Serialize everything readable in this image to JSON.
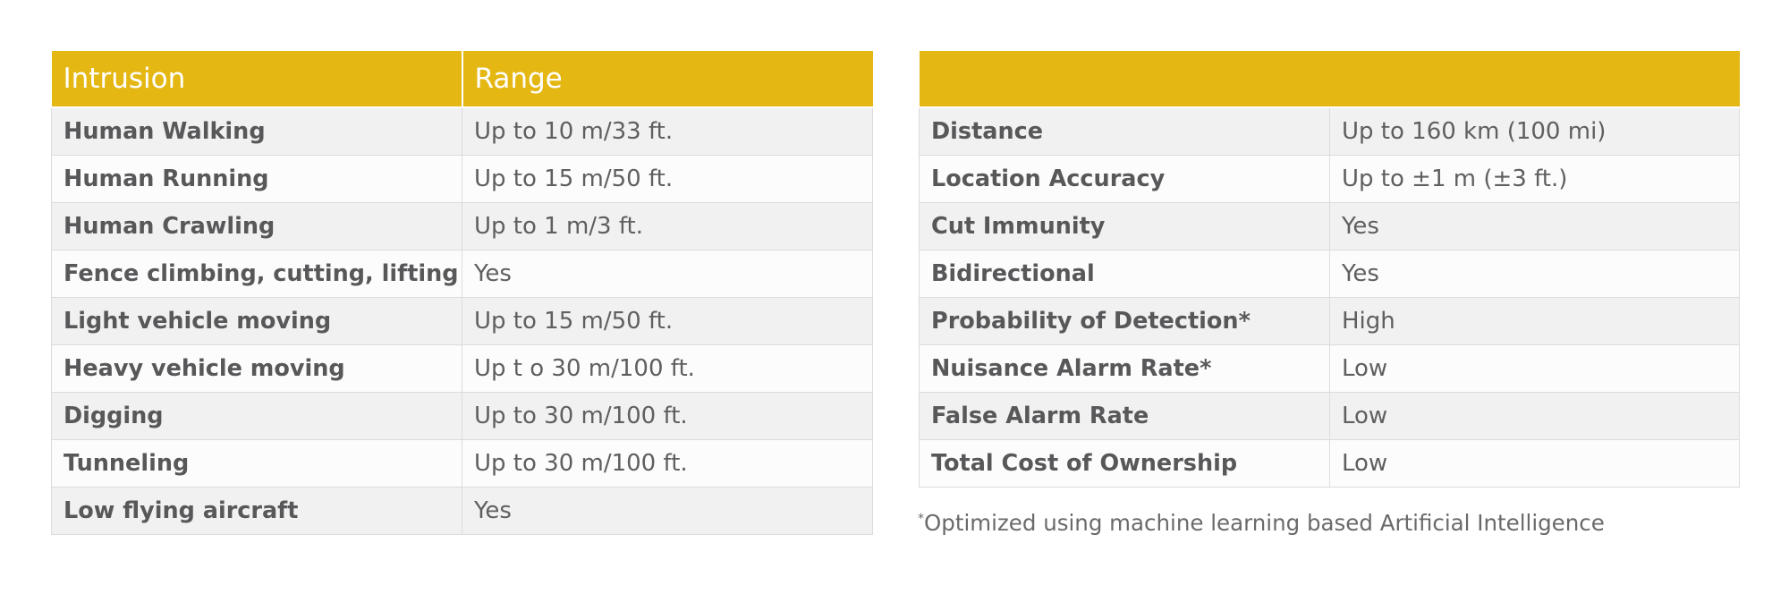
{
  "left_table": {
    "headers": [
      "Intrusion",
      "Range"
    ],
    "rows": [
      {
        "label": "Human Walking",
        "value": "Up to 10 m/33 ft."
      },
      {
        "label": "Human Running",
        "value": "Up to 15 m/50 ft."
      },
      {
        "label": "Human Crawling",
        "value": "Up to 1 m/3 ft."
      },
      {
        "label": "Fence climbing, cutting, lifting",
        "value": "Yes"
      },
      {
        "label": "Light vehicle moving",
        "value": "Up to 15 m/50 ft."
      },
      {
        "label": "Heavy vehicle moving",
        "value": "Up t o 30 m/100 ft."
      },
      {
        "label": "Digging",
        "value": "Up to 30 m/100 ft."
      },
      {
        "label": "Tunneling",
        "value": "Up to 30 m/100 ft."
      },
      {
        "label": "Low flying aircraft",
        "value": "Yes"
      }
    ]
  },
  "right_table": {
    "rows": [
      {
        "label": "Distance",
        "value": "Up to 160 km (100 mi)"
      },
      {
        "label": "Location Accuracy",
        "value": "Up to ±1 m (±3 ft.)"
      },
      {
        "label": "Cut Immunity",
        "value": "Yes"
      },
      {
        "label": "Bidirectional",
        "value": "Yes"
      },
      {
        "label": "Probability of Detection*",
        "value": "High"
      },
      {
        "label": "Nuisance Alarm Rate*",
        "value": "Low"
      },
      {
        "label": "False Alarm Rate",
        "value": "Low"
      },
      {
        "label": "Total Cost of Ownership",
        "value": "Low"
      }
    ]
  },
  "footnote": {
    "marker": "*",
    "text": "Optimized using machine learning based Artificial Intelligence"
  },
  "colors": {
    "header_bg": "#e5b713",
    "header_text": "#ffffff",
    "row_odd": "#f1f1f1",
    "row_even": "#fcfcfc",
    "text": "#58585a"
  }
}
